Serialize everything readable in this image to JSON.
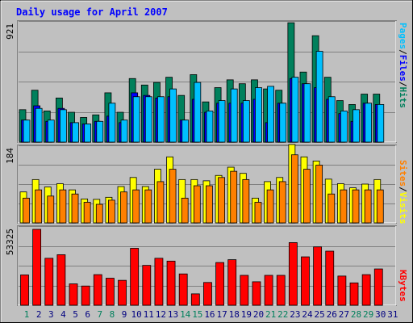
{
  "colors": {
    "background": "#c0c0c0",
    "title": "#0000ff",
    "hits": "#00805c",
    "files": "#0000ff",
    "pages": "#00c0ff",
    "visits": "#ffff00",
    "sites": "#ff8000",
    "kbytes": "#ff0000",
    "weekend": "#00805c",
    "weekday": "#000080"
  },
  "chart_data": [
    {
      "type": "bar",
      "title": "Daily usage for April 2007",
      "panel": "hits-files-pages",
      "ylabel_parts": [
        "Pages",
        "/",
        "Files",
        "/",
        "Hits"
      ],
      "max_label": "921",
      "ylim": [
        0,
        921
      ],
      "grid": true,
      "categories": [
        "1",
        "2",
        "3",
        "4",
        "5",
        "6",
        "7",
        "8",
        "9",
        "10",
        "11",
        "12",
        "13",
        "14",
        "15",
        "16",
        "17",
        "18",
        "19",
        "20",
        "21",
        "22",
        "23",
        "24",
        "25",
        "26",
        "27",
        "28",
        "29",
        "30",
        "31"
      ],
      "series": [
        {
          "name": "Hits",
          "values": [
            250,
            400,
            240,
            340,
            230,
            190,
            210,
            380,
            230,
            490,
            440,
            460,
            500,
            360,
            520,
            310,
            420,
            480,
            450,
            480,
            410,
            400,
            920,
            540,
            820,
            500,
            320,
            290,
            370,
            370,
            0
          ]
        },
        {
          "name": "Files",
          "values": [
            170,
            280,
            160,
            260,
            150,
            140,
            160,
            200,
            150,
            380,
            360,
            340,
            350,
            170,
            330,
            230,
            300,
            300,
            300,
            330,
            150,
            300,
            490,
            450,
            420,
            330,
            220,
            160,
            300,
            290,
            0
          ]
        },
        {
          "name": "Pages",
          "values": [
            170,
            260,
            170,
            250,
            150,
            140,
            160,
            300,
            170,
            350,
            350,
            350,
            410,
            170,
            460,
            240,
            320,
            410,
            320,
            420,
            430,
            300,
            500,
            450,
            700,
            350,
            240,
            250,
            300,
            290,
            0
          ]
        }
      ]
    },
    {
      "type": "bar",
      "panel": "visits-sites",
      "ylabel_parts": [
        "Sites",
        "/",
        "Visits"
      ],
      "max_label": "184",
      "ylim": [
        0,
        184
      ],
      "grid": true,
      "categories": [
        "1",
        "2",
        "3",
        "4",
        "5",
        "6",
        "7",
        "8",
        "9",
        "10",
        "11",
        "12",
        "13",
        "14",
        "15",
        "16",
        "17",
        "18",
        "19",
        "20",
        "21",
        "22",
        "23",
        "24",
        "25",
        "26",
        "27",
        "28",
        "29",
        "30",
        "31"
      ],
      "series": [
        {
          "name": "Visits",
          "values": [
            75,
            105,
            87,
            95,
            80,
            58,
            57,
            62,
            88,
            110,
            88,
            130,
            160,
            105,
            105,
            102,
            115,
            135,
            120,
            60,
            100,
            110,
            190,
            160,
            150,
            106,
            95,
            85,
            94,
            105,
            0
          ]
        },
        {
          "name": "Sites",
          "values": [
            60,
            80,
            65,
            80,
            70,
            50,
            45,
            55,
            75,
            80,
            80,
            100,
            130,
            60,
            90,
            90,
            110,
            125,
            105,
            50,
            80,
            100,
            165,
            130,
            140,
            70,
            80,
            80,
            80,
            80,
            0
          ]
        }
      ]
    },
    {
      "type": "bar",
      "panel": "kbytes",
      "ylabel_parts": [
        "KBytes"
      ],
      "max_label": "53325",
      "ylim": [
        0,
        53325
      ],
      "grid": true,
      "categories": [
        "1",
        "2",
        "3",
        "4",
        "5",
        "6",
        "7",
        "8",
        "9",
        "10",
        "11",
        "12",
        "13",
        "14",
        "15",
        "16",
        "17",
        "18",
        "19",
        "20",
        "21",
        "22",
        "23",
        "24",
        "25",
        "26",
        "27",
        "28",
        "29",
        "30",
        "31"
      ],
      "series": [
        {
          "name": "KBytes",
          "values": [
            21300,
            53300,
            33000,
            35500,
            15000,
            13500,
            21500,
            19000,
            17500,
            40000,
            28000,
            33000,
            31000,
            22000,
            8000,
            16000,
            30000,
            32000,
            21000,
            16500,
            21000,
            21000,
            44000,
            34000,
            41000,
            38000,
            20500,
            15700,
            21500,
            25500,
            0
          ]
        }
      ]
    }
  ],
  "x_labels": [
    {
      "day": "1",
      "weekend": true
    },
    {
      "day": "2",
      "weekend": false
    },
    {
      "day": "3",
      "weekend": false
    },
    {
      "day": "4",
      "weekend": false
    },
    {
      "day": "5",
      "weekend": false
    },
    {
      "day": "6",
      "weekend": false
    },
    {
      "day": "7",
      "weekend": true
    },
    {
      "day": "8",
      "weekend": true
    },
    {
      "day": "9",
      "weekend": false
    },
    {
      "day": "10",
      "weekend": false
    },
    {
      "day": "11",
      "weekend": false
    },
    {
      "day": "12",
      "weekend": false
    },
    {
      "day": "13",
      "weekend": false
    },
    {
      "day": "14",
      "weekend": true
    },
    {
      "day": "15",
      "weekend": true
    },
    {
      "day": "16",
      "weekend": false
    },
    {
      "day": "17",
      "weekend": false
    },
    {
      "day": "18",
      "weekend": false
    },
    {
      "day": "19",
      "weekend": false
    },
    {
      "day": "20",
      "weekend": false
    },
    {
      "day": "21",
      "weekend": true
    },
    {
      "day": "22",
      "weekend": true
    },
    {
      "day": "23",
      "weekend": false
    },
    {
      "day": "24",
      "weekend": false
    },
    {
      "day": "25",
      "weekend": false
    },
    {
      "day": "26",
      "weekend": false
    },
    {
      "day": "27",
      "weekend": false
    },
    {
      "day": "28",
      "weekend": true
    },
    {
      "day": "29",
      "weekend": true
    },
    {
      "day": "30",
      "weekend": false
    },
    {
      "day": "31",
      "weekend": false
    }
  ]
}
